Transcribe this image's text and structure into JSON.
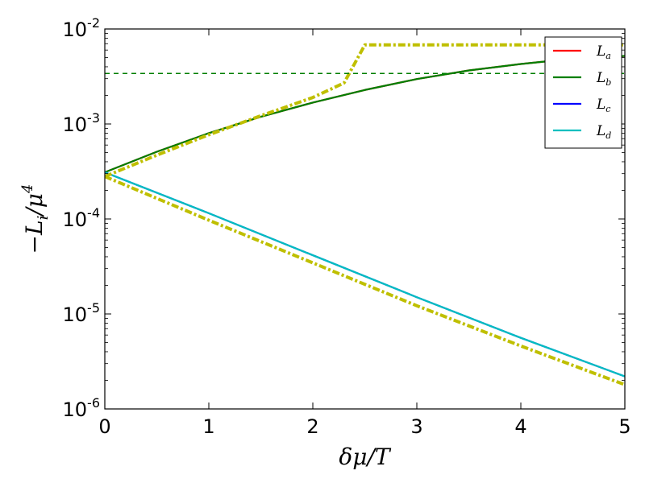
{
  "chart_data": {
    "type": "line",
    "xlabel": "δμ/T",
    "ylabel": "−L_i/μ^4",
    "ylabel_parts": {
      "minus": "−",
      "base": "L",
      "sub": "i",
      "slash": "/μ",
      "sup": "4"
    },
    "xlim": [
      0,
      5
    ],
    "ylim": [
      1e-06,
      0.01
    ],
    "yscale": "log",
    "grid": false,
    "legend_position": "top-right",
    "x_ticks": [
      {
        "value": 0,
        "label": "0"
      },
      {
        "value": 1,
        "label": "1"
      },
      {
        "value": 2,
        "label": "2"
      },
      {
        "value": 3,
        "label": "3"
      },
      {
        "value": 4,
        "label": "4"
      },
      {
        "value": 5,
        "label": "5"
      }
    ],
    "y_ticks": [
      {
        "value": 1e-06,
        "base": "10",
        "exp": "-6"
      },
      {
        "value": 1e-05,
        "base": "10",
        "exp": "-5"
      },
      {
        "value": 0.0001,
        "base": "10",
        "exp": "-4"
      },
      {
        "value": 0.001,
        "base": "10",
        "exp": "-3"
      },
      {
        "value": 0.01,
        "base": "10",
        "exp": "-2"
      }
    ],
    "series": [
      {
        "name": "L_a",
        "legend_base": "L",
        "legend_sub": "a",
        "color": "#ff0000",
        "style": "solid",
        "in_legend": true,
        "x": [
          0,
          0.5,
          1,
          1.5,
          2,
          2.5,
          3,
          3.5,
          4,
          4.5,
          5
        ],
        "y": [
          0.00031,
          0.00051,
          0.0008,
          0.00119,
          0.00168,
          0.00228,
          0.00297,
          0.00366,
          0.00428,
          0.00487,
          0.0052
        ]
      },
      {
        "name": "L_b",
        "legend_base": "L",
        "legend_sub": "b",
        "color": "#007f00",
        "style": "solid",
        "in_legend": true,
        "x": [
          0,
          0.5,
          1,
          1.5,
          2,
          2.5,
          3,
          3.5,
          4,
          4.5,
          5
        ],
        "y": [
          0.00031,
          0.00051,
          0.0008,
          0.00119,
          0.00168,
          0.00228,
          0.00297,
          0.00366,
          0.00428,
          0.00487,
          0.0052
        ]
      },
      {
        "name": "L_c",
        "legend_base": "L",
        "legend_sub": "c",
        "color": "#0000ff",
        "style": "solid",
        "in_legend": true,
        "x": [
          0,
          1,
          2,
          3,
          4,
          5
        ],
        "y": [
          0.00031,
          0.000115,
          4.15e-05,
          1.5e-05,
          5.6e-06,
          2.2e-06
        ]
      },
      {
        "name": "L_d",
        "legend_base": "L",
        "legend_sub": "d",
        "color": "#00bfbf",
        "style": "solid",
        "in_legend": true,
        "x": [
          0,
          1,
          2,
          3,
          4,
          5
        ],
        "y": [
          0.00031,
          0.000115,
          4.15e-05,
          1.5e-05,
          5.6e-06,
          2.2e-06
        ]
      },
      {
        "name": "",
        "color": "#bfbf00",
        "style": "dashdot",
        "in_legend": false,
        "x": [
          0,
          0.5,
          1,
          1.5,
          2,
          2.3,
          2.5,
          3,
          4,
          5
        ],
        "y": [
          0.00028,
          0.00047,
          0.00077,
          0.00122,
          0.0019,
          0.0027,
          0.0068,
          0.0068,
          0.0068,
          0.0068
        ]
      },
      {
        "name": "",
        "color": "#bfbf00",
        "style": "dashdot",
        "in_legend": false,
        "x": [
          0,
          1,
          2,
          3,
          4,
          5
        ],
        "y": [
          0.00028,
          9.7e-05,
          3.45e-05,
          1.22e-05,
          4.6e-06,
          1.8e-06
        ]
      },
      {
        "name": "",
        "color": "#007f00",
        "style": "dashed",
        "in_legend": false,
        "x": [
          0,
          5
        ],
        "y": [
          0.0034,
          0.0034
        ]
      }
    ]
  }
}
